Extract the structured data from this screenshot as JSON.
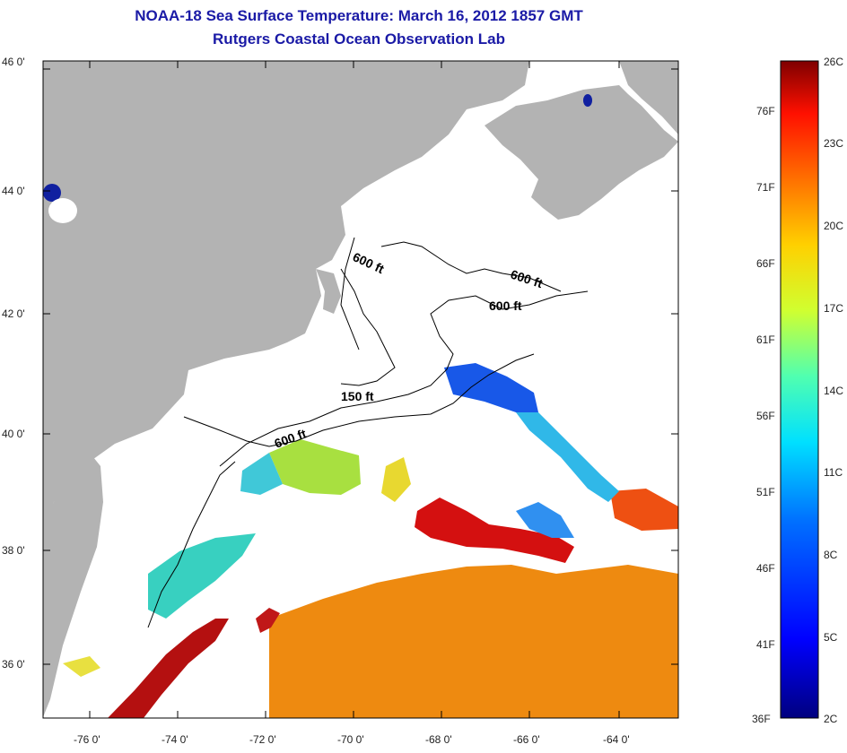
{
  "title": {
    "line1": "NOAA-18 Sea Surface Temperature:  March 16, 2012 1857 GMT",
    "line2": "Rutgers Coastal Ocean Observation Lab"
  },
  "axes": {
    "y_ticks": [
      "46 0'",
      "44 0'",
      "42 0'",
      "40 0'",
      "38 0'",
      "36 0'"
    ],
    "x_ticks": [
      "-76 0'",
      "-74 0'",
      "-72 0'",
      "-70 0'",
      "-68 0'",
      "-66 0'",
      "-64 0'"
    ]
  },
  "contours": {
    "labels": [
      "600 ft",
      "600 ft",
      "600 ft",
      "150 ft",
      "600 ft"
    ]
  },
  "colorbar": {
    "celsius": [
      "26C",
      "23C",
      "20C",
      "17C",
      "14C",
      "11C",
      "8C",
      "5C",
      "2C"
    ],
    "fahrenheit": [
      "76F",
      "71F",
      "66F",
      "61F",
      "56F",
      "51F",
      "46F",
      "41F",
      "36F"
    ]
  },
  "colors": {
    "land": "#b3b3b3",
    "cloud": "#ffffff",
    "title": "#1a1aa6",
    "scale": [
      "#00008f",
      "#0000ff",
      "#0080ff",
      "#00e0ff",
      "#40ffc0",
      "#c0ff40",
      "#ffe000",
      "#ff8000",
      "#ff2000",
      "#800000"
    ]
  }
}
